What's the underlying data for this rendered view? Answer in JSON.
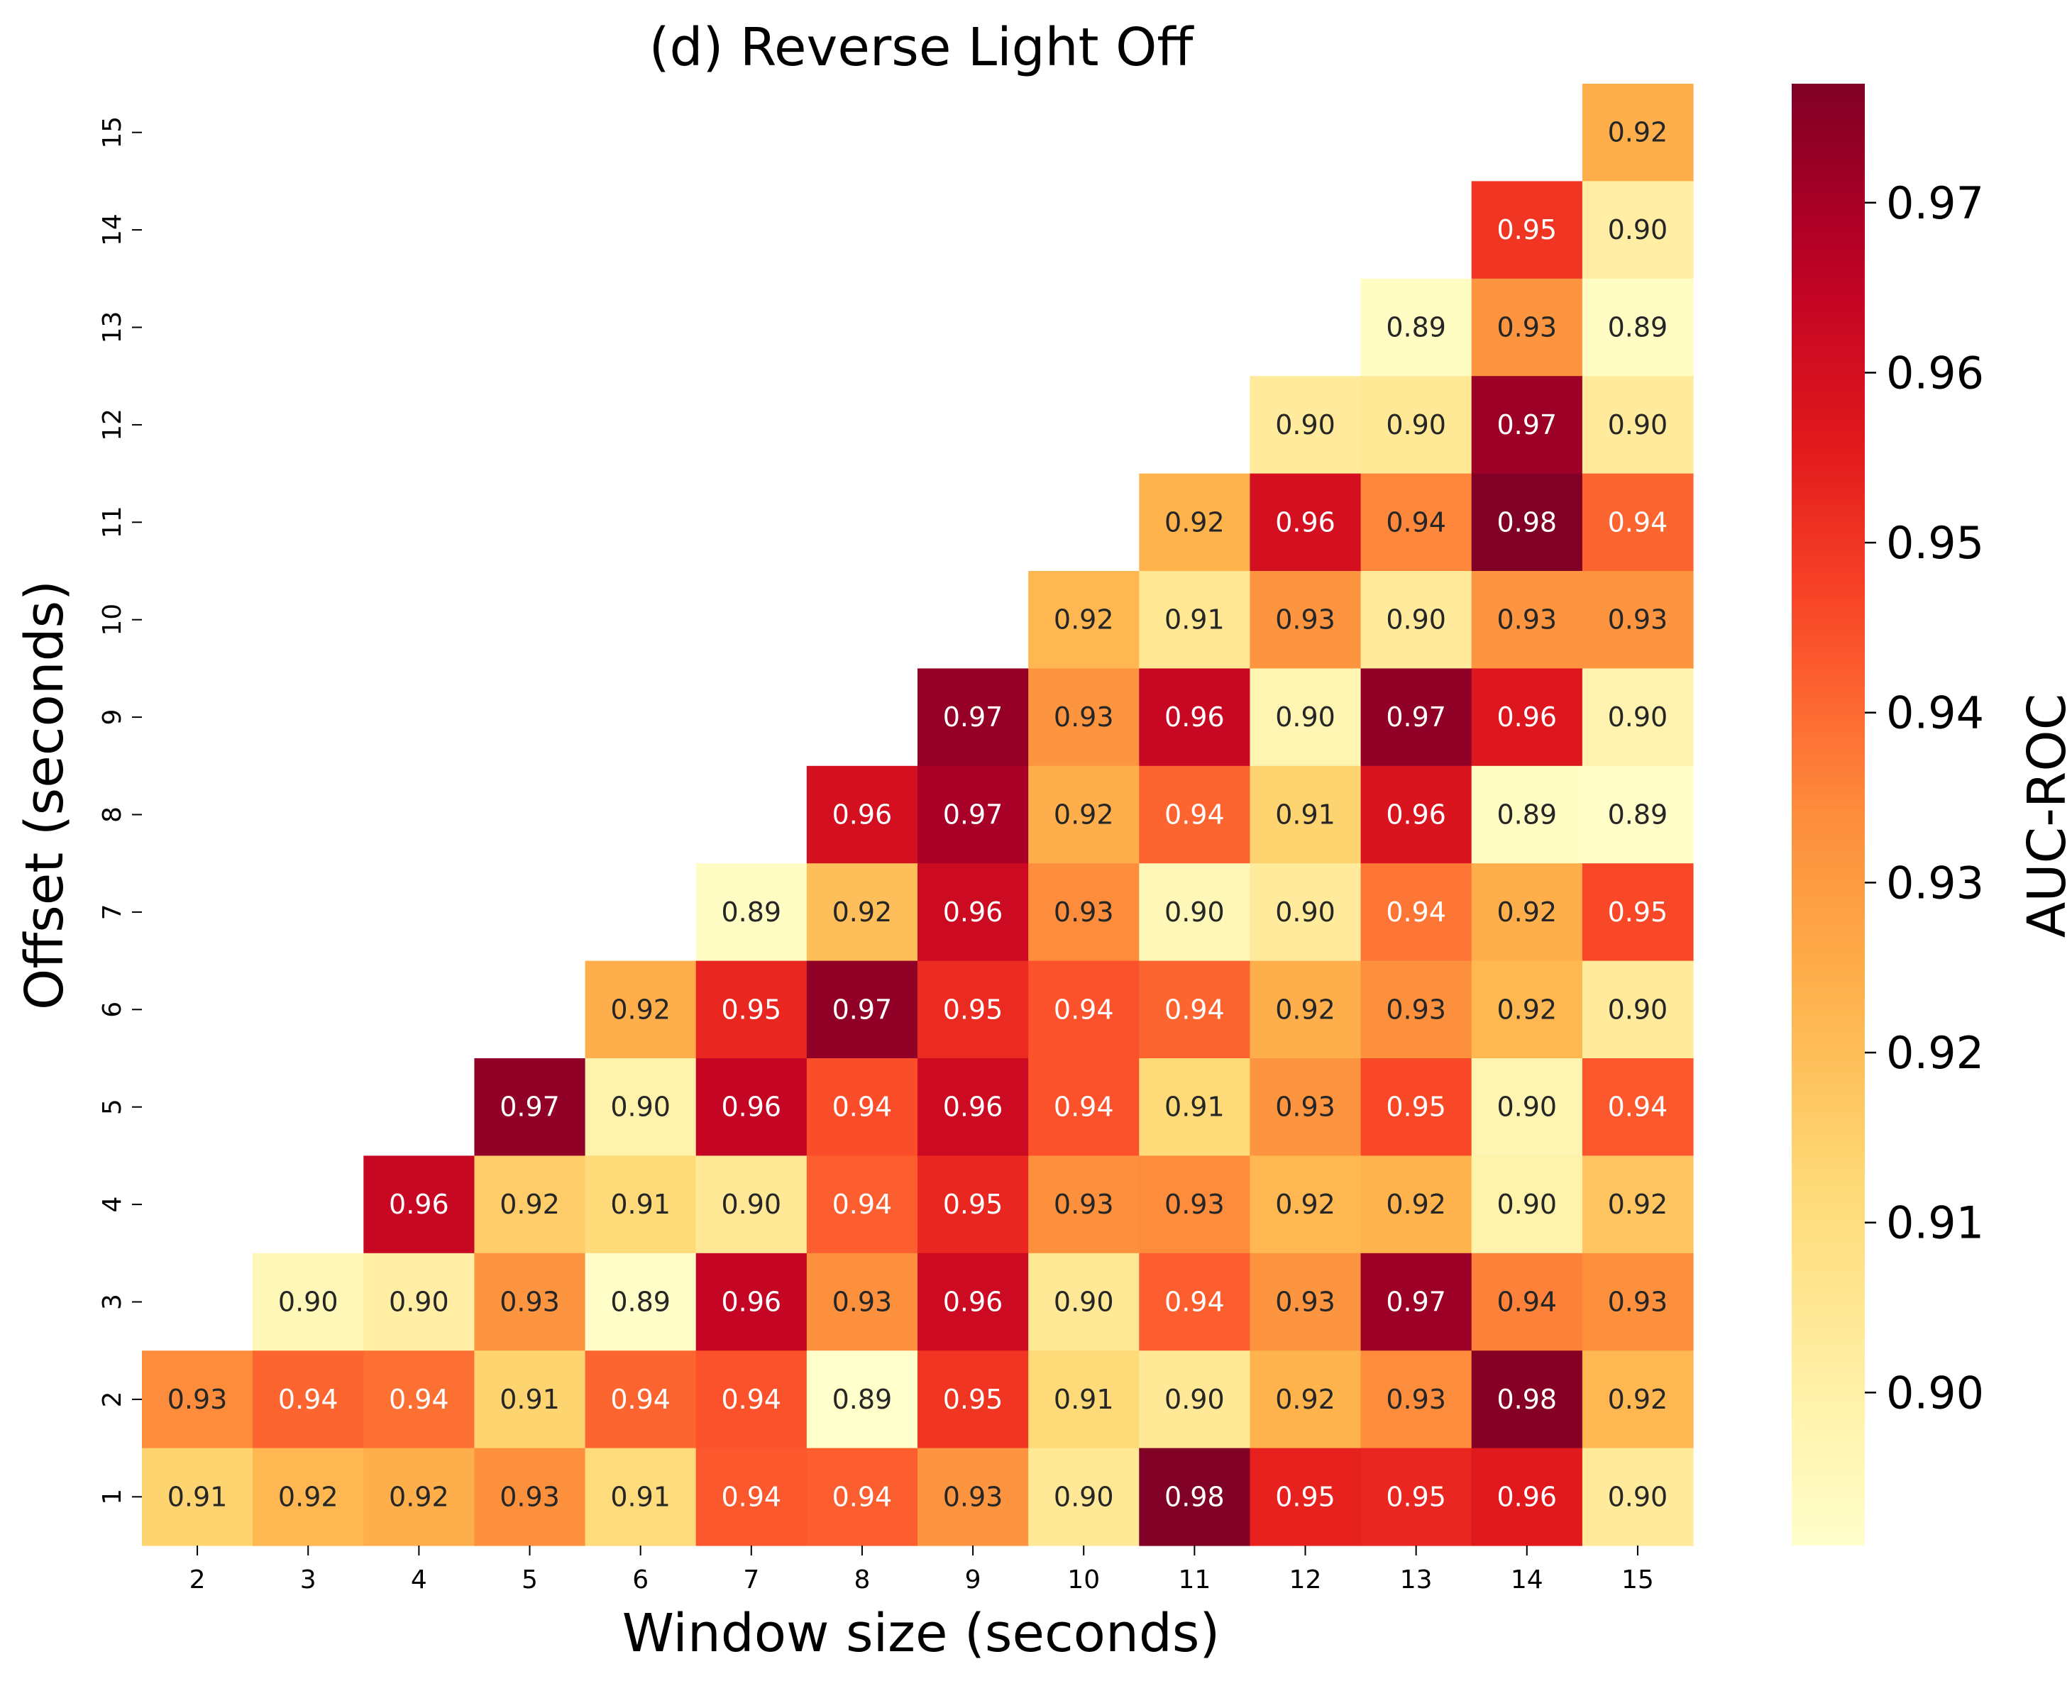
{
  "chart_data": {
    "type": "heatmap",
    "title": "(d) Reverse Light Off",
    "xlabel": "Window size (seconds)",
    "ylabel": "Offset (seconds)",
    "x": [
      2,
      3,
      4,
      5,
      6,
      7,
      8,
      9,
      10,
      11,
      12,
      13,
      14,
      15
    ],
    "y": [
      15,
      14,
      13,
      12,
      11,
      10,
      9,
      8,
      7,
      6,
      5,
      4,
      3,
      2,
      1
    ],
    "colormap": "YlOrRd",
    "vmin": 0.891,
    "vmax": 0.977,
    "colorbar": {
      "label": "AUC-ROC",
      "ticks": [
        0.9,
        0.91,
        0.92,
        0.93,
        0.94,
        0.95,
        0.96,
        0.97
      ],
      "tick_labels": [
        "0.90",
        "0.91",
        "0.92",
        "0.93",
        "0.94",
        "0.95",
        "0.96",
        "0.97"
      ]
    },
    "values": [
      [
        null,
        null,
        null,
        null,
        null,
        null,
        null,
        null,
        null,
        null,
        null,
        null,
        null,
        0.924
      ],
      [
        null,
        null,
        null,
        null,
        null,
        null,
        null,
        null,
        null,
        null,
        null,
        null,
        0.95,
        0.901
      ],
      [
        null,
        null,
        null,
        null,
        null,
        null,
        null,
        null,
        null,
        null,
        null,
        0.893,
        0.932,
        0.893
      ],
      [
        null,
        null,
        null,
        null,
        null,
        null,
        null,
        null,
        null,
        null,
        0.903,
        0.904,
        0.972,
        0.903
      ],
      [
        null,
        null,
        null,
        null,
        null,
        null,
        null,
        null,
        null,
        0.923,
        0.96,
        0.935,
        0.977,
        0.941
      ],
      [
        null,
        null,
        null,
        null,
        null,
        null,
        null,
        null,
        0.922,
        0.905,
        0.932,
        0.903,
        0.932,
        0.932
      ],
      [
        null,
        null,
        null,
        null,
        null,
        null,
        null,
        0.973,
        0.932,
        0.963,
        0.897,
        0.974,
        0.957,
        0.898
      ],
      [
        null,
        null,
        null,
        null,
        null,
        null,
        0.96,
        0.97,
        0.924,
        0.941,
        0.914,
        0.958,
        0.893,
        0.892
      ],
      [
        null,
        null,
        null,
        null,
        null,
        0.893,
        0.92,
        0.962,
        0.934,
        0.896,
        0.903,
        0.938,
        0.924,
        0.946
      ],
      [
        null,
        null,
        null,
        null,
        0.924,
        0.953,
        0.974,
        0.952,
        0.944,
        0.941,
        0.924,
        0.933,
        0.922,
        0.903
      ],
      [
        null,
        null,
        null,
        0.974,
        0.899,
        0.964,
        0.945,
        0.962,
        0.944,
        0.912,
        0.932,
        0.946,
        0.897,
        0.943
      ],
      [
        null,
        null,
        0.963,
        0.916,
        0.912,
        0.904,
        0.942,
        0.953,
        0.933,
        0.934,
        0.922,
        0.923,
        0.899,
        0.918
      ],
      [
        null,
        0.896,
        0.901,
        0.932,
        0.892,
        0.964,
        0.933,
        0.962,
        0.904,
        0.942,
        0.932,
        0.972,
        0.936,
        0.933
      ],
      [
        0.934,
        0.941,
        0.939,
        0.914,
        0.941,
        0.944,
        0.891,
        0.95,
        0.912,
        0.904,
        0.923,
        0.934,
        0.976,
        0.922
      ],
      [
        0.914,
        0.922,
        0.924,
        0.933,
        0.911,
        0.943,
        0.942,
        0.932,
        0.904,
        0.978,
        0.954,
        0.953,
        0.956,
        0.903
      ]
    ]
  }
}
